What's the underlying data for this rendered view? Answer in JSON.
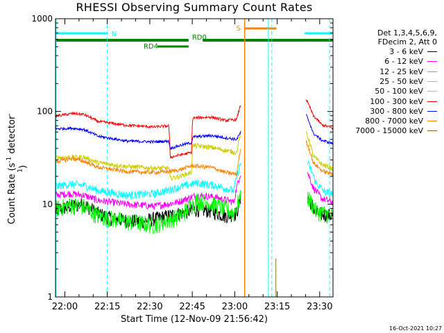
{
  "chart_data": {
    "type": "line",
    "title": "RHESSI Observing Summary Count Rates",
    "xlabel": "Start Time (12-Nov-09 21:56:42)",
    "ylabel_main": "Count Rate (s",
    "ylabel_sup": "-1",
    "ylabel_mid": " detector",
    "ylabel_tail": ")",
    "x_axis": {
      "unit": "minutes since 21:56:42",
      "range": [
        0,
        98
      ],
      "ticks": [
        {
          "value": 3.3,
          "label": "22:00"
        },
        {
          "value": 18.3,
          "label": "22:15"
        },
        {
          "value": 33.3,
          "label": "22:30"
        },
        {
          "value": 48.3,
          "label": "22:45"
        },
        {
          "value": 63.3,
          "label": "23:00"
        },
        {
          "value": 78.3,
          "label": "23:15"
        },
        {
          "value": 93.3,
          "label": "23:30"
        }
      ]
    },
    "y_axis": {
      "scale": "log",
      "range": [
        1,
        1000
      ],
      "tick_labels": [
        "1",
        "10",
        "100",
        "1000"
      ]
    },
    "legend_header": [
      "Det 1,3,4,5,6,9,",
      "FDecim 2, Att 0"
    ],
    "series": [
      {
        "name": "3 - 6 keV",
        "color": "#000000",
        "points": [
          [
            0,
            8.5
          ],
          [
            5,
            9.5
          ],
          [
            10,
            10
          ],
          [
            15,
            8
          ],
          [
            20,
            7
          ],
          [
            30,
            6.5
          ],
          [
            40,
            7.5
          ],
          [
            44,
            8
          ],
          [
            50,
            8.8
          ],
          [
            55,
            8.5
          ],
          [
            60,
            7.5
          ],
          [
            64,
            8
          ],
          [
            65.5,
            12
          ]
        ],
        "points2": [
          [
            89,
            12
          ],
          [
            92,
            8
          ],
          [
            98,
            7.5
          ]
        ]
      },
      {
        "name": "6 - 12 keV",
        "color": "#ff00ff",
        "points": [
          [
            0,
            12.5
          ],
          [
            5,
            13
          ],
          [
            10,
            12.5
          ],
          [
            15,
            11
          ],
          [
            25,
            10
          ],
          [
            35,
            9.5
          ],
          [
            43,
            10.5
          ],
          [
            50,
            12.5
          ],
          [
            56,
            12
          ],
          [
            63,
            10.5
          ],
          [
            65.5,
            22
          ]
        ],
        "points2": [
          [
            89,
            22
          ],
          [
            91,
            15
          ],
          [
            94,
            11.5
          ],
          [
            98,
            10.5
          ]
        ]
      },
      {
        "name": "12 - 25 keV",
        "color": "#00ff00",
        "points": [
          [
            0,
            9
          ],
          [
            5,
            9.8
          ],
          [
            10,
            9.5
          ],
          [
            15,
            7.5
          ],
          [
            25,
            6.5
          ],
          [
            35,
            6
          ],
          [
            44,
            7.5
          ],
          [
            50,
            11
          ],
          [
            56,
            10
          ],
          [
            63,
            8
          ],
          [
            65.5,
            12
          ]
        ],
        "points2": [
          [
            89,
            12
          ],
          [
            92,
            8.5
          ],
          [
            98,
            7.5
          ]
        ]
      },
      {
        "name": "25 - 50 keV",
        "color": "#00ffff",
        "points": [
          [
            0,
            15.5
          ],
          [
            5,
            16.5
          ],
          [
            10,
            16
          ],
          [
            15,
            14
          ],
          [
            25,
            12.5
          ],
          [
            35,
            13
          ],
          [
            43,
            15
          ],
          [
            50,
            17
          ],
          [
            56,
            16
          ],
          [
            63,
            14
          ],
          [
            65.5,
            28
          ]
        ],
        "points2": [
          [
            89,
            28
          ],
          [
            92,
            17
          ],
          [
            95,
            13.5
          ],
          [
            98,
            13
          ]
        ]
      },
      {
        "name": "50 - 100 keV",
        "color": "#cccc00",
        "points": [
          [
            0,
            32
          ],
          [
            10,
            32
          ],
          [
            15,
            28
          ],
          [
            25,
            25.5
          ],
          [
            35,
            24.5
          ],
          [
            40,
            24.5
          ],
          [
            40.5,
            19
          ],
          [
            44,
            20
          ],
          [
            48,
            22
          ],
          [
            48.5,
            43
          ],
          [
            55,
            41
          ],
          [
            60,
            38
          ],
          [
            64,
            36
          ],
          [
            65.5,
            60
          ]
        ],
        "points2": [
          [
            88.5,
            60
          ],
          [
            91,
            33
          ],
          [
            94,
            27
          ],
          [
            98,
            24
          ]
        ]
      },
      {
        "name": "100 - 300 keV",
        "color": "#ff0000",
        "points": [
          [
            0,
            89
          ],
          [
            6,
            95
          ],
          [
            10,
            93
          ],
          [
            15,
            78
          ],
          [
            25,
            71
          ],
          [
            35,
            68
          ],
          [
            40,
            70
          ],
          [
            40.5,
            32
          ],
          [
            44,
            34
          ],
          [
            48,
            36
          ],
          [
            48.5,
            85
          ],
          [
            55,
            87
          ],
          [
            60,
            80
          ],
          [
            64,
            82
          ],
          [
            65.5,
            120
          ]
        ],
        "points2": [
          [
            88.5,
            135
          ],
          [
            91,
            90
          ],
          [
            94,
            72
          ],
          [
            98,
            66
          ]
        ]
      },
      {
        "name": "300 - 800 keV",
        "color": "#0000ff",
        "points": [
          [
            0,
            65
          ],
          [
            6,
            66
          ],
          [
            10,
            64
          ],
          [
            15,
            54
          ],
          [
            25,
            48
          ],
          [
            35,
            47
          ],
          [
            40,
            48
          ],
          [
            40.5,
            40
          ],
          [
            44,
            43
          ],
          [
            48,
            46
          ],
          [
            48.5,
            53
          ],
          [
            55,
            55
          ],
          [
            60,
            52
          ],
          [
            64,
            50
          ],
          [
            65.5,
            60
          ]
        ],
        "points2": [
          [
            88.5,
            92
          ],
          [
            91,
            58
          ],
          [
            94,
            49
          ],
          [
            98,
            45
          ]
        ]
      },
      {
        "name": "800 - 7000 keV",
        "color": "#ff8000",
        "points": [
          [
            0,
            29
          ],
          [
            6,
            31
          ],
          [
            10,
            29
          ],
          [
            15,
            25
          ],
          [
            25,
            22.5
          ],
          [
            35,
            22
          ],
          [
            40,
            22.5
          ],
          [
            44,
            23.5
          ],
          [
            48,
            26
          ],
          [
            55,
            25
          ],
          [
            60,
            22
          ],
          [
            64,
            21
          ],
          [
            65.5,
            40
          ]
        ],
        "points2": [
          [
            88.5,
            48
          ],
          [
            91,
            28
          ],
          [
            94,
            23
          ],
          [
            98,
            21
          ]
        ]
      },
      {
        "name": "7000 - 15000 keV",
        "color": "#806000",
        "points": [],
        "points2": []
      }
    ],
    "states": {
      "night_label": "N",
      "night": [
        [
          0,
          18.3
        ],
        [
          88,
          98
        ]
      ],
      "saa_label": "S",
      "saa": [
        [
          67,
          78
        ]
      ],
      "rd0_label": "RD0",
      "rd4_label": "RD4",
      "rd0": [
        [
          0,
          47
        ],
        [
          52,
          98
        ]
      ],
      "rd4": [
        [
          36,
          47
        ]
      ]
    },
    "vlines": {
      "cyan_dashed": [
        18.3,
        76.4,
        96.8
      ],
      "cyan_solid": [
        0.2,
        75.2
      ],
      "orange_solid": [
        66.8
      ],
      "olive_short": [
        77.8
      ]
    }
  },
  "footer": {
    "stamp": "16-Oct-2021 10:27"
  }
}
